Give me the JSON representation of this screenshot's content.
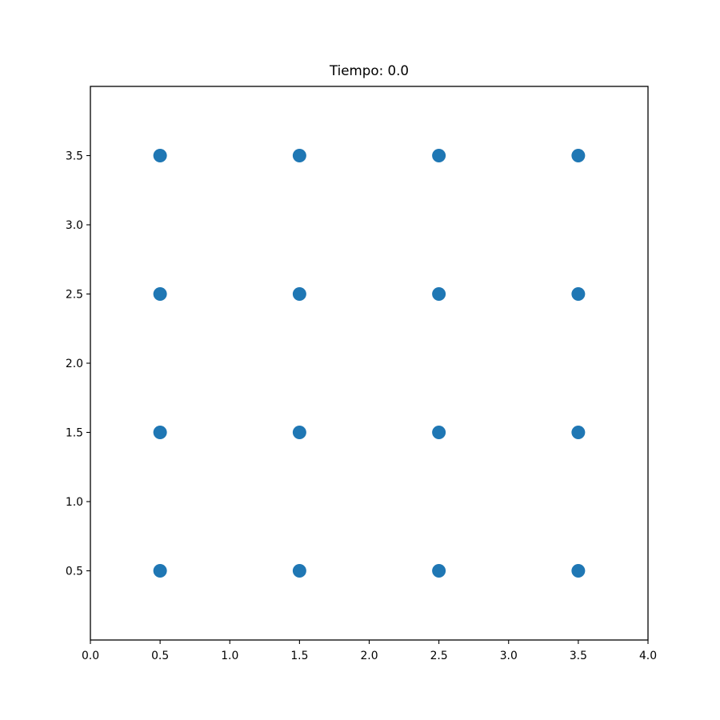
{
  "chart_data": {
    "type": "scatter",
    "title": "Tiempo: 0.0",
    "xlabel": "",
    "ylabel": "",
    "xlim": [
      0.0,
      4.0
    ],
    "ylim": [
      0.0,
      4.0
    ],
    "x_ticks": [
      "0.0",
      "0.5",
      "1.0",
      "1.5",
      "2.0",
      "2.5",
      "3.0",
      "3.5",
      "4.0"
    ],
    "y_ticks": [
      "0.5",
      "1.0",
      "1.5",
      "2.0",
      "2.5",
      "3.0",
      "3.5"
    ],
    "grid": false,
    "legend": "none",
    "series": [
      {
        "color": "#1f77b4",
        "points": [
          {
            "x": 0.5,
            "y": 3.5
          },
          {
            "x": 1.5,
            "y": 3.5
          },
          {
            "x": 2.5,
            "y": 3.5
          },
          {
            "x": 3.5,
            "y": 3.5
          },
          {
            "x": 0.5,
            "y": 2.5
          },
          {
            "x": 1.5,
            "y": 2.5
          },
          {
            "x": 2.5,
            "y": 2.5
          },
          {
            "x": 3.5,
            "y": 2.5
          },
          {
            "x": 0.5,
            "y": 1.5
          },
          {
            "x": 1.5,
            "y": 1.5
          },
          {
            "x": 2.5,
            "y": 1.5
          },
          {
            "x": 3.5,
            "y": 1.5
          },
          {
            "x": 0.5,
            "y": 0.5
          },
          {
            "x": 1.5,
            "y": 0.5
          },
          {
            "x": 2.5,
            "y": 0.5
          },
          {
            "x": 3.5,
            "y": 0.5
          }
        ]
      }
    ]
  }
}
